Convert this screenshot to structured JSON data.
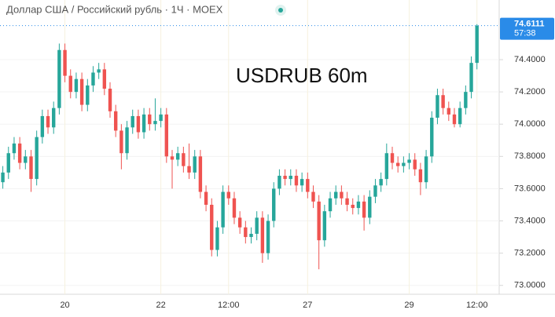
{
  "chart_data": {
    "type": "candlestick",
    "title": "Доллар США / Российский рубль · 1Ч · MOEX",
    "annotation": "USDRUB 60m",
    "countdown": "57:38",
    "up_color": "#26a69a",
    "down_color": "#ef5350",
    "tag_color": "#2a8be8",
    "grid": true,
    "categories": [
      null,
      null,
      null,
      null,
      null,
      null,
      null,
      null,
      null,
      null,
      null,
      "20",
      null,
      null,
      null,
      null,
      null,
      null,
      null,
      null,
      null,
      null,
      null,
      null,
      null,
      null,
      null,
      null,
      "22",
      null,
      null,
      null,
      null,
      null,
      null,
      null,
      null,
      null,
      null,
      null,
      "12:00",
      null,
      null,
      null,
      null,
      null,
      null,
      null,
      null,
      null,
      null,
      null,
      null,
      null,
      "27",
      null,
      null,
      null,
      null,
      null,
      null,
      null,
      null,
      null,
      null,
      null,
      null,
      null,
      null,
      null,
      null,
      null,
      "29",
      null,
      null,
      null,
      null,
      null,
      null,
      null,
      null,
      null,
      null,
      null,
      "12:00"
    ],
    "open": [
      73.64,
      73.7,
      73.82,
      73.88,
      73.76,
      73.8,
      73.66,
      73.92,
      74.05,
      73.98,
      74.1,
      74.46,
      74.3,
      74.2,
      74.28,
      74.12,
      74.24,
      74.32,
      74.34,
      74.22,
      74.08,
      73.96,
      73.82,
      73.98,
      74.05,
      73.95,
      74.06,
      74.0,
      74.02,
      74.06,
      73.8,
      73.78,
      73.82,
      73.74,
      73.7,
      73.8,
      73.58,
      73.5,
      73.22,
      73.36,
      73.58,
      73.54,
      73.42,
      73.36,
      73.3,
      73.32,
      73.42,
      73.2,
      73.4,
      73.6,
      73.68,
      73.66,
      73.68,
      73.62,
      73.66,
      73.58,
      73.52,
      73.28,
      73.46,
      73.54,
      73.58,
      73.54,
      73.5,
      73.48,
      73.52,
      73.42,
      73.55,
      73.62,
      73.66,
      73.82,
      73.76,
      73.74,
      73.76,
      73.78,
      73.72,
      73.64,
      73.8,
      74.04,
      74.18,
      74.1,
      74.06,
      74.0,
      74.1,
      74.2,
      74.38
    ],
    "high": [
      73.74,
      73.86,
      73.92,
      73.92,
      73.84,
      73.84,
      73.96,
      74.09,
      74.09,
      74.14,
      74.5,
      74.5,
      74.34,
      74.32,
      74.32,
      74.28,
      74.36,
      74.38,
      74.38,
      74.26,
      74.12,
      74.0,
      74.02,
      74.09,
      74.09,
      74.1,
      74.1,
      74.16,
      74.1,
      74.1,
      73.84,
      73.86,
      73.86,
      73.88,
      73.84,
      73.84,
      73.62,
      73.54,
      73.4,
      73.62,
      73.62,
      73.58,
      73.46,
      73.4,
      73.36,
      73.46,
      73.46,
      73.44,
      73.64,
      73.72,
      73.72,
      73.72,
      73.72,
      73.7,
      73.7,
      73.62,
      73.56,
      73.5,
      73.58,
      73.62,
      73.62,
      73.58,
      73.54,
      73.56,
      73.56,
      73.59,
      73.66,
      73.7,
      73.88,
      73.86,
      73.8,
      73.8,
      73.82,
      73.82,
      73.76,
      73.84,
      74.08,
      74.22,
      74.22,
      74.14,
      74.1,
      74.14,
      74.24,
      74.42,
      74.62
    ],
    "low": [
      73.6,
      73.66,
      73.78,
      73.72,
      73.72,
      73.58,
      73.62,
      73.88,
      73.94,
      73.94,
      74.06,
      74.26,
      74.16,
      74.16,
      74.08,
      74.08,
      74.2,
      74.28,
      74.18,
      74.04,
      73.92,
      73.72,
      73.78,
      73.94,
      73.91,
      73.91,
      73.96,
      73.96,
      73.98,
      73.76,
      73.6,
      73.74,
      73.7,
      73.66,
      73.66,
      73.54,
      73.46,
      73.18,
      73.18,
      73.32,
      73.5,
      73.38,
      73.32,
      73.26,
      73.26,
      73.28,
      73.14,
      73.16,
      73.36,
      73.56,
      73.62,
      73.62,
      73.58,
      73.58,
      73.54,
      73.48,
      73.1,
      73.24,
      73.42,
      73.5,
      73.5,
      73.46,
      73.44,
      73.44,
      73.34,
      73.38,
      73.51,
      73.58,
      73.62,
      73.72,
      73.7,
      73.7,
      73.72,
      73.68,
      73.56,
      73.6,
      73.76,
      74.0,
      74.06,
      74.02,
      73.98,
      73.98,
      74.06,
      74.16,
      74.34
    ],
    "close": [
      73.7,
      73.82,
      73.88,
      73.76,
      73.8,
      73.66,
      73.92,
      74.05,
      73.98,
      74.1,
      74.46,
      74.3,
      74.2,
      74.28,
      74.12,
      74.24,
      74.32,
      74.34,
      74.22,
      74.08,
      73.96,
      73.82,
      73.98,
      74.05,
      73.95,
      74.06,
      74.0,
      74.02,
      74.06,
      73.8,
      73.78,
      73.82,
      73.74,
      73.7,
      73.8,
      73.58,
      73.5,
      73.22,
      73.36,
      73.58,
      73.54,
      73.42,
      73.36,
      73.3,
      73.32,
      73.42,
      73.2,
      73.4,
      73.6,
      73.68,
      73.66,
      73.68,
      73.62,
      73.66,
      73.58,
      73.52,
      73.28,
      73.46,
      73.54,
      73.58,
      73.54,
      73.5,
      73.48,
      73.52,
      73.42,
      73.55,
      73.62,
      73.66,
      73.82,
      73.76,
      73.74,
      73.76,
      73.78,
      73.72,
      73.64,
      73.8,
      74.04,
      74.18,
      74.1,
      74.06,
      74.0,
      74.1,
      74.2,
      74.38,
      74.6111
    ],
    "last_label": "74.6111",
    "ylim": [
      72.95,
      74.77
    ],
    "yticks": [
      {
        "value": 73.0,
        "label": "73.0000"
      },
      {
        "value": 73.2,
        "label": "73.2000"
      },
      {
        "value": 73.4,
        "label": "73.4000"
      },
      {
        "value": 73.6,
        "label": "73.6000"
      },
      {
        "value": 73.8,
        "label": "73.8000"
      },
      {
        "value": 74.0,
        "label": "74.0000"
      },
      {
        "value": 74.2,
        "label": "74.2000"
      },
      {
        "value": 74.4,
        "label": "74.4000"
      }
    ]
  }
}
